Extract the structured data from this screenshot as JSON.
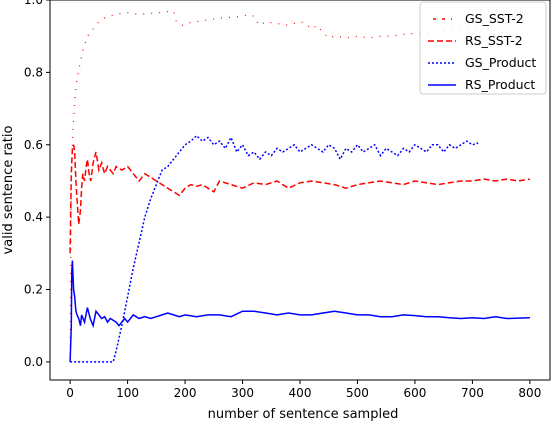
{
  "chart_data": {
    "type": "line",
    "title": "",
    "xlabel": "number of sentence sampled",
    "ylabel": "valid sentence ratio",
    "xlim": [
      -35,
      835
    ],
    "ylim": [
      -0.05,
      1.0
    ],
    "xticks": [
      0,
      100,
      200,
      300,
      400,
      500,
      600,
      700,
      800
    ],
    "yticks": [
      0.0,
      0.2,
      0.4,
      0.6,
      0.8,
      1.0
    ],
    "xtick_labels": [
      "0",
      "100",
      "200",
      "300",
      "400",
      "500",
      "600",
      "700",
      "800"
    ],
    "ytick_labels": [
      "0.0",
      "0.2",
      "0.4",
      "0.6",
      "0.8",
      "1.0"
    ],
    "grid": false,
    "legend_position": "top-right",
    "series": [
      {
        "name": "GS_SST-2",
        "color": "#ff0000",
        "style": "dashdot",
        "x": [
          0,
          2,
          4,
          6,
          8,
          10,
          14,
          18,
          22,
          26,
          30,
          35,
          40,
          45,
          50,
          55,
          60,
          65,
          70,
          75,
          80,
          85,
          90,
          95,
          100,
          120,
          140,
          160,
          170,
          180,
          185,
          190,
          195,
          200,
          220,
          240,
          260,
          280,
          300,
          310,
          320,
          325,
          330,
          340,
          360,
          380,
          400,
          410,
          420,
          430,
          440,
          450,
          460,
          470,
          480,
          500,
          520,
          540,
          560,
          580,
          600,
          620,
          640,
          660,
          680,
          700,
          720
        ],
        "y": [
          0.0,
          0.5,
          0.6,
          0.67,
          0.72,
          0.76,
          0.8,
          0.83,
          0.86,
          0.88,
          0.9,
          0.91,
          0.92,
          0.93,
          0.94,
          0.945,
          0.95,
          0.953,
          0.956,
          0.958,
          0.96,
          0.962,
          0.963,
          0.965,
          0.965,
          0.96,
          0.963,
          0.966,
          0.968,
          0.969,
          0.94,
          0.935,
          0.93,
          0.935,
          0.94,
          0.945,
          0.95,
          0.952,
          0.955,
          0.96,
          0.955,
          0.94,
          0.93,
          0.94,
          0.935,
          0.93,
          0.94,
          0.935,
          0.92,
          0.93,
          0.91,
          0.895,
          0.9,
          0.898,
          0.895,
          0.9,
          0.895,
          0.9,
          0.9,
          0.905,
          0.908,
          0.91,
          0.912,
          0.915,
          0.917,
          0.918,
          0.92
        ]
      },
      {
        "name": "RS_SST-2",
        "color": "#ff0000",
        "style": "dashed",
        "x": [
          0,
          2,
          4,
          6,
          8,
          10,
          12,
          15,
          18,
          20,
          22,
          25,
          28,
          30,
          33,
          36,
          40,
          45,
          50,
          55,
          60,
          65,
          70,
          75,
          80,
          90,
          100,
          110,
          120,
          130,
          140,
          150,
          160,
          170,
          180,
          190,
          200,
          210,
          220,
          230,
          240,
          250,
          260,
          280,
          300,
          320,
          340,
          360,
          380,
          400,
          420,
          440,
          460,
          480,
          500,
          520,
          540,
          560,
          580,
          600,
          620,
          640,
          660,
          680,
          700,
          720,
          740,
          760,
          780,
          800
        ],
        "y": [
          0.3,
          0.52,
          0.59,
          0.6,
          0.58,
          0.5,
          0.45,
          0.38,
          0.42,
          0.48,
          0.52,
          0.5,
          0.54,
          0.56,
          0.52,
          0.5,
          0.55,
          0.58,
          0.53,
          0.55,
          0.52,
          0.54,
          0.53,
          0.52,
          0.54,
          0.53,
          0.54,
          0.52,
          0.5,
          0.52,
          0.51,
          0.5,
          0.49,
          0.48,
          0.47,
          0.46,
          0.48,
          0.49,
          0.485,
          0.49,
          0.48,
          0.47,
          0.5,
          0.49,
          0.48,
          0.495,
          0.49,
          0.5,
          0.48,
          0.495,
          0.5,
          0.495,
          0.49,
          0.48,
          0.49,
          0.495,
          0.5,
          0.495,
          0.49,
          0.5,
          0.495,
          0.49,
          0.495,
          0.5,
          0.5,
          0.505,
          0.5,
          0.505,
          0.5,
          0.505
        ]
      },
      {
        "name": "GS_Product",
        "color": "#0000ff",
        "style": "dotted",
        "x": [
          0,
          20,
          40,
          60,
          75,
          80,
          90,
          100,
          110,
          120,
          130,
          140,
          150,
          160,
          170,
          180,
          190,
          200,
          210,
          220,
          230,
          240,
          250,
          260,
          270,
          280,
          290,
          300,
          310,
          320,
          330,
          340,
          350,
          360,
          370,
          380,
          390,
          400,
          410,
          420,
          430,
          440,
          450,
          460,
          470,
          480,
          490,
          500,
          510,
          520,
          530,
          540,
          550,
          560,
          570,
          580,
          590,
          600,
          610,
          620,
          630,
          640,
          650,
          660,
          670,
          680,
          690,
          700,
          710
        ],
        "y": [
          0.0,
          0.0,
          0.0,
          0.0,
          0.0,
          0.03,
          0.1,
          0.18,
          0.26,
          0.33,
          0.4,
          0.45,
          0.49,
          0.53,
          0.54,
          0.56,
          0.58,
          0.6,
          0.61,
          0.625,
          0.61,
          0.62,
          0.6,
          0.61,
          0.59,
          0.62,
          0.58,
          0.6,
          0.57,
          0.58,
          0.56,
          0.58,
          0.57,
          0.59,
          0.58,
          0.59,
          0.6,
          0.58,
          0.59,
          0.6,
          0.59,
          0.58,
          0.6,
          0.59,
          0.56,
          0.59,
          0.58,
          0.6,
          0.58,
          0.59,
          0.6,
          0.57,
          0.59,
          0.58,
          0.57,
          0.59,
          0.58,
          0.6,
          0.59,
          0.58,
          0.6,
          0.6,
          0.58,
          0.6,
          0.59,
          0.6,
          0.61,
          0.6,
          0.605
        ]
      },
      {
        "name": "RS_Product",
        "color": "#0000ff",
        "style": "solid",
        "x": [
          0,
          2,
          3,
          4,
          5,
          6,
          8,
          10,
          12,
          15,
          18,
          20,
          25,
          30,
          35,
          40,
          45,
          50,
          55,
          60,
          65,
          70,
          75,
          80,
          85,
          90,
          95,
          100,
          110,
          120,
          130,
          140,
          150,
          160,
          170,
          180,
          190,
          200,
          220,
          240,
          260,
          280,
          300,
          320,
          340,
          360,
          380,
          400,
          420,
          440,
          460,
          480,
          500,
          520,
          540,
          560,
          580,
          600,
          620,
          640,
          660,
          680,
          700,
          720,
          740,
          760,
          780,
          800
        ],
        "y": [
          0.0,
          0.1,
          0.25,
          0.28,
          0.24,
          0.2,
          0.18,
          0.14,
          0.13,
          0.12,
          0.1,
          0.13,
          0.11,
          0.15,
          0.12,
          0.1,
          0.14,
          0.13,
          0.12,
          0.125,
          0.11,
          0.12,
          0.115,
          0.11,
          0.1,
          0.11,
          0.12,
          0.11,
          0.13,
          0.12,
          0.125,
          0.12,
          0.125,
          0.13,
          0.135,
          0.13,
          0.125,
          0.13,
          0.125,
          0.13,
          0.13,
          0.125,
          0.14,
          0.14,
          0.135,
          0.13,
          0.135,
          0.13,
          0.13,
          0.135,
          0.14,
          0.135,
          0.13,
          0.13,
          0.125,
          0.125,
          0.13,
          0.128,
          0.125,
          0.125,
          0.122,
          0.12,
          0.122,
          0.12,
          0.125,
          0.12,
          0.121,
          0.122
        ]
      }
    ]
  }
}
